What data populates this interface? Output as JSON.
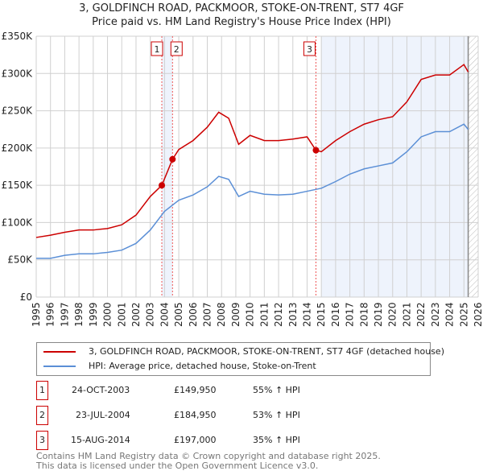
{
  "chart_data": {
    "type": "line",
    "title": "3, GOLDFINCH ROAD, PACKMOOR, STOKE-ON-TRENT, ST7 4GF",
    "subtitle": "Price paid vs. HM Land Registry's House Price Index (HPI)",
    "xlim": [
      1995,
      2026
    ],
    "ylim": [
      0,
      350000
    ],
    "y_ticks": [
      {
        "v": 0,
        "label": "£0"
      },
      {
        "v": 50000,
        "label": "£50K"
      },
      {
        "v": 100000,
        "label": "£100K"
      },
      {
        "v": 150000,
        "label": "£150K"
      },
      {
        "v": 200000,
        "label": "£200K"
      },
      {
        "v": 250000,
        "label": "£250K"
      },
      {
        "v": 300000,
        "label": "£300K"
      },
      {
        "v": 350000,
        "label": "£350K"
      }
    ],
    "x_ticks": [
      "1995",
      "1996",
      "1997",
      "1998",
      "1999",
      "2000",
      "2001",
      "2002",
      "2003",
      "2004",
      "2005",
      "2006",
      "2007",
      "2008",
      "2009",
      "2010",
      "2011",
      "2012",
      "2013",
      "2014",
      "2015",
      "2016",
      "2017",
      "2018",
      "2019",
      "2020",
      "2021",
      "2022",
      "2023",
      "2024",
      "2025",
      "2026"
    ],
    "grid": true,
    "series": [
      {
        "name": "3, GOLDFINCH ROAD, PACKMOOR, STOKE-ON-TRENT, ST7 4GF (detached house)",
        "color": "#cc0000",
        "x": [
          1995,
          1996,
          1997,
          1998,
          1999,
          2000,
          2001,
          2002,
          2003,
          2003.81,
          2004.56,
          2005,
          2006,
          2007,
          2007.8,
          2008.5,
          2009.2,
          2010,
          2011,
          2012,
          2013,
          2014,
          2014.62,
          2015,
          2016,
          2017,
          2018,
          2019,
          2020,
          2021,
          2022,
          2023,
          2024,
          2025,
          2025.3
        ],
        "y": [
          80000,
          83000,
          87000,
          90000,
          90000,
          92000,
          97000,
          110000,
          135000,
          149950,
          184950,
          198000,
          210000,
          228000,
          248000,
          240000,
          205000,
          217000,
          210000,
          210000,
          212000,
          215000,
          197000,
          195000,
          210000,
          222000,
          232000,
          238000,
          242000,
          262000,
          292000,
          298000,
          298000,
          312000,
          302000
        ]
      },
      {
        "name": "HPI: Average price, detached house, Stoke-on-Trent",
        "color": "#5b8fd6",
        "x": [
          1995,
          1996,
          1997,
          1998,
          1999,
          2000,
          2001,
          2002,
          2003,
          2004,
          2005,
          2006,
          2007,
          2007.8,
          2008.5,
          2009.2,
          2010,
          2011,
          2012,
          2013,
          2014,
          2015,
          2016,
          2017,
          2018,
          2019,
          2020,
          2021,
          2022,
          2023,
          2024,
          2025,
          2025.3
        ],
        "y": [
          52000,
          52000,
          56000,
          58000,
          58000,
          60000,
          63000,
          72000,
          90000,
          115000,
          130000,
          137000,
          148000,
          162000,
          158000,
          135000,
          142000,
          138000,
          137000,
          138000,
          142000,
          146000,
          155000,
          165000,
          172000,
          176000,
          180000,
          195000,
          215000,
          222000,
          222000,
          232000,
          225000
        ]
      }
    ],
    "sales": [
      {
        "n": "1",
        "x": 2003.81,
        "date": "24-OCT-2003",
        "price": "£149,950",
        "hpi": "55% ↑ HPI",
        "value": 149950
      },
      {
        "n": "2",
        "x": 2004.56,
        "date": "23-JUL-2004",
        "price": "£184,950",
        "hpi": "53% ↑ HPI",
        "value": 184950
      },
      {
        "n": "3",
        "x": 2014.62,
        "date": "15-AUG-2014",
        "price": "£197,000",
        "hpi": "35% ↑ HPI",
        "value": 197000
      }
    ],
    "shaded_ranges": [
      [
        2003.81,
        2004.56
      ],
      [
        2015,
        2025.3
      ]
    ],
    "forecast_from": 2025.3,
    "legend": "below"
  },
  "footer": [
    "Contains HM Land Registry data © Crown copyright and database right 2025.",
    "This data is licensed under the Open Government Licence v3.0."
  ]
}
